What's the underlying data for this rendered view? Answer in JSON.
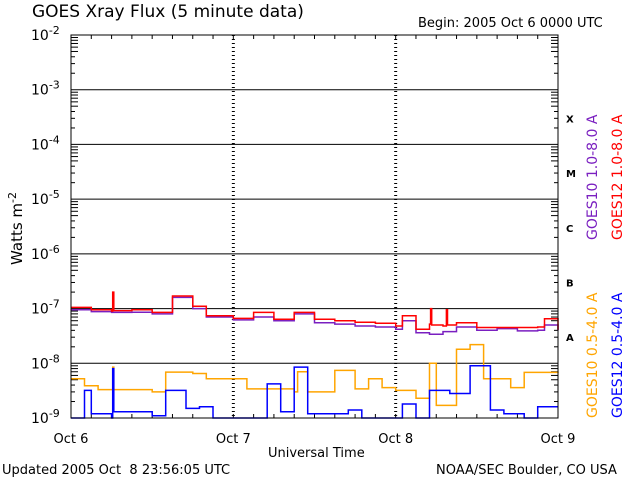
{
  "chart_data": {
    "type": "line",
    "title": "GOES Xray Flux (5 minute data)",
    "begin_label": "Begin:  2005 Oct 6 0000 UTC",
    "xlabel": "Universal Time",
    "ylabel": "Watts m",
    "ylabel_sup": "-2",
    "y_scale": "log",
    "ylim": [
      1e-09,
      0.01
    ],
    "xlim": [
      "2005-10-06 00:00",
      "2005-10-09 00:00"
    ],
    "x_ticks": [
      "Oct 6",
      "Oct 7",
      "Oct 8",
      "Oct 9"
    ],
    "y_ticks": [
      {
        "base": "10",
        "exp": "-2"
      },
      {
        "base": "10",
        "exp": "-3"
      },
      {
        "base": "10",
        "exp": "-4"
      },
      {
        "base": "10",
        "exp": "-5"
      },
      {
        "base": "10",
        "exp": "-6"
      },
      {
        "base": "10",
        "exp": "-7"
      },
      {
        "base": "10",
        "exp": "-8"
      },
      {
        "base": "10",
        "exp": "-9"
      }
    ],
    "flare_classes": [
      {
        "label": "X",
        "value": 0.0003
      },
      {
        "label": "M",
        "value": 3e-05
      },
      {
        "label": "C",
        "value": 3e-06
      },
      {
        "label": "B",
        "value": 3e-07
      },
      {
        "label": "A",
        "value": 3e-08
      }
    ],
    "grid": true,
    "legend_placement": "right",
    "series": [
      {
        "name": "GOES10 1.0-8.0 A",
        "color": "#7a1fc0",
        "points": [
          [
            "2005-10-06 00:00",
            9.5e-08
          ],
          [
            "2005-10-06 03:00",
            8.8e-08
          ],
          [
            "2005-10-06 06:00",
            8.5e-08
          ],
          [
            "2005-10-06 09:00",
            8.6e-08
          ],
          [
            "2005-10-06 12:00",
            8e-08
          ],
          [
            "2005-10-06 15:00",
            1.6e-07
          ],
          [
            "2005-10-06 18:00",
            1e-07
          ],
          [
            "2005-10-06 20:00",
            7e-08
          ],
          [
            "2005-10-07 00:00",
            6.2e-08
          ],
          [
            "2005-10-07 03:00",
            7e-08
          ],
          [
            "2005-10-07 06:00",
            6e-08
          ],
          [
            "2005-10-07 09:00",
            8e-08
          ],
          [
            "2005-10-07 12:00",
            5.5e-08
          ],
          [
            "2005-10-07 15:00",
            5.2e-08
          ],
          [
            "2005-10-07 18:00",
            4.8e-08
          ],
          [
            "2005-10-07 21:00",
            4.6e-08
          ],
          [
            "2005-10-08 00:00",
            4.2e-08
          ],
          [
            "2005-10-08 01:00",
            6e-08
          ],
          [
            "2005-10-08 03:00",
            3.6e-08
          ],
          [
            "2005-10-08 05:00",
            3.4e-08
          ],
          [
            "2005-10-08 07:00",
            3.8e-08
          ],
          [
            "2005-10-08 09:00",
            4.6e-08
          ],
          [
            "2005-10-08 12:00",
            4e-08
          ],
          [
            "2005-10-08 15:00",
            4.3e-08
          ],
          [
            "2005-10-08 18:00",
            3.9e-08
          ],
          [
            "2005-10-08 21:00",
            4e-08
          ],
          [
            "2005-10-08 22:00",
            5e-08
          ],
          [
            "2005-10-09 00:00",
            4e-08
          ]
        ]
      },
      {
        "name": "GOES12 1.0-8.0 A",
        "color": "#ff0000",
        "points": [
          [
            "2005-10-06 00:00",
            1.05e-07
          ],
          [
            "2005-10-06 03:00",
            9.5e-08
          ],
          [
            "2005-10-06 06:00",
            9e-08
          ],
          [
            "2005-10-06 06:10",
            2e-07
          ],
          [
            "2005-10-06 06:20",
            9.2e-08
          ],
          [
            "2005-10-06 09:00",
            9.5e-08
          ],
          [
            "2005-10-06 12:00",
            8.5e-08
          ],
          [
            "2005-10-06 15:00",
            1.7e-07
          ],
          [
            "2005-10-06 18:00",
            1.1e-07
          ],
          [
            "2005-10-06 20:00",
            7.4e-08
          ],
          [
            "2005-10-07 00:00",
            6.6e-08
          ],
          [
            "2005-10-07 03:00",
            8.5e-08
          ],
          [
            "2005-10-07 06:00",
            6.4e-08
          ],
          [
            "2005-10-07 09:00",
            8.5e-08
          ],
          [
            "2005-10-07 12:00",
            6.4e-08
          ],
          [
            "2005-10-07 15:00",
            6e-08
          ],
          [
            "2005-10-07 18:00",
            5.6e-08
          ],
          [
            "2005-10-07 21:00",
            5.4e-08
          ],
          [
            "2005-10-08 00:00",
            4.8e-08
          ],
          [
            "2005-10-08 01:00",
            7.4e-08
          ],
          [
            "2005-10-08 03:00",
            4.2e-08
          ],
          [
            "2005-10-08 05:00",
            5.2e-08
          ],
          [
            "2005-10-08 05:10",
            1e-07
          ],
          [
            "2005-10-08 05:20",
            5e-08
          ],
          [
            "2005-10-08 07:00",
            4.8e-08
          ],
          [
            "2005-10-08 07:30",
            9.5e-08
          ],
          [
            "2005-10-08 07:40",
            5e-08
          ],
          [
            "2005-10-08 09:00",
            5.5e-08
          ],
          [
            "2005-10-08 12:00",
            4.5e-08
          ],
          [
            "2005-10-08 15:00",
            4.5e-08
          ],
          [
            "2005-10-08 18:00",
            4.5e-08
          ],
          [
            "2005-10-08 21:00",
            4.6e-08
          ],
          [
            "2005-10-08 22:00",
            6.5e-08
          ],
          [
            "2005-10-09 00:00",
            4.1e-08
          ]
        ]
      },
      {
        "name": "GOES10 0.5-4.0 A",
        "color": "#ffa500",
        "points": [
          [
            "2005-10-06 00:00",
            5.2e-09
          ],
          [
            "2005-10-06 02:00",
            3.9e-09
          ],
          [
            "2005-10-06 04:00",
            3.3e-09
          ],
          [
            "2005-10-06 06:00",
            3.3e-09
          ],
          [
            "2005-10-06 06:10",
            8.5e-09
          ],
          [
            "2005-10-06 06:20",
            3.3e-09
          ],
          [
            "2005-10-06 12:00",
            3e-09
          ],
          [
            "2005-10-06 14:00",
            6.9e-09
          ],
          [
            "2005-10-06 18:00",
            6.5e-09
          ],
          [
            "2005-10-06 20:00",
            5.2e-09
          ],
          [
            "2005-10-07 00:00",
            5.2e-09
          ],
          [
            "2005-10-07 02:00",
            3.4e-09
          ],
          [
            "2005-10-07 09:00",
            3e-09
          ],
          [
            "2005-10-07 09:30",
            7e-09
          ],
          [
            "2005-10-07 11:00",
            3e-09
          ],
          [
            "2005-10-07 15:00",
            7.4e-09
          ],
          [
            "2005-10-07 18:00",
            3.4e-09
          ],
          [
            "2005-10-07 20:00",
            5.2e-09
          ],
          [
            "2005-10-07 22:00",
            3.6e-09
          ],
          [
            "2005-10-08 00:00",
            3.2e-09
          ],
          [
            "2005-10-08 03:00",
            2.3e-09
          ],
          [
            "2005-10-08 05:00",
            1e-08
          ],
          [
            "2005-10-08 06:00",
            1.7e-09
          ],
          [
            "2005-10-08 09:00",
            1.8e-08
          ],
          [
            "2005-10-08 11:00",
            2.2e-08
          ],
          [
            "2005-10-08 13:00",
            5.2e-09
          ],
          [
            "2005-10-08 17:00",
            3.6e-09
          ],
          [
            "2005-10-08 19:00",
            6.8e-09
          ],
          [
            "2005-10-09 00:00",
            6.7e-09
          ]
        ]
      },
      {
        "name": "GOES12 0.5-4.0 A",
        "color": "#0000ff",
        "points": [
          [
            "2005-10-06 00:00",
            1e-09
          ],
          [
            "2005-10-06 02:00",
            3.2e-09
          ],
          [
            "2005-10-06 03:00",
            1.2e-09
          ],
          [
            "2005-10-06 06:00",
            1e-09
          ],
          [
            "2005-10-06 06:10",
            8e-09
          ],
          [
            "2005-10-06 06:20",
            1.3e-09
          ],
          [
            "2005-10-06 10:00",
            1.3e-09
          ],
          [
            "2005-10-06 12:00",
            1.1e-09
          ],
          [
            "2005-10-06 14:00",
            3.2e-09
          ],
          [
            "2005-10-06 17:00",
            1.5e-09
          ],
          [
            "2005-10-06 19:00",
            1.6e-09
          ],
          [
            "2005-10-06 21:00",
            1e-09
          ],
          [
            "2005-10-07 03:00",
            1e-09
          ],
          [
            "2005-10-07 05:00",
            4.2e-09
          ],
          [
            "2005-10-07 07:00",
            1.3e-09
          ],
          [
            "2005-10-07 09:00",
            8.5e-09
          ],
          [
            "2005-10-07 11:00",
            1.2e-09
          ],
          [
            "2005-10-07 17:00",
            1.4e-09
          ],
          [
            "2005-10-07 19:00",
            1e-09
          ],
          [
            "2005-10-08 01:00",
            1.8e-09
          ],
          [
            "2005-10-08 03:00",
            1e-09
          ],
          [
            "2005-10-08 05:00",
            3.2e-09
          ],
          [
            "2005-10-08 08:00",
            2.8e-09
          ],
          [
            "2005-10-08 11:00",
            9e-09
          ],
          [
            "2005-10-08 14:00",
            1.4e-09
          ],
          [
            "2005-10-08 16:00",
            1.2e-09
          ],
          [
            "2005-10-08 19:00",
            1e-09
          ],
          [
            "2005-10-08 21:00",
            1.6e-09
          ],
          [
            "2005-10-09 00:00",
            1.6e-09
          ]
        ]
      }
    ]
  },
  "footer": {
    "updated": "Updated 2005 Oct  8 23:56:05 UTC",
    "source": "NOAA/SEC Boulder, CO USA"
  }
}
